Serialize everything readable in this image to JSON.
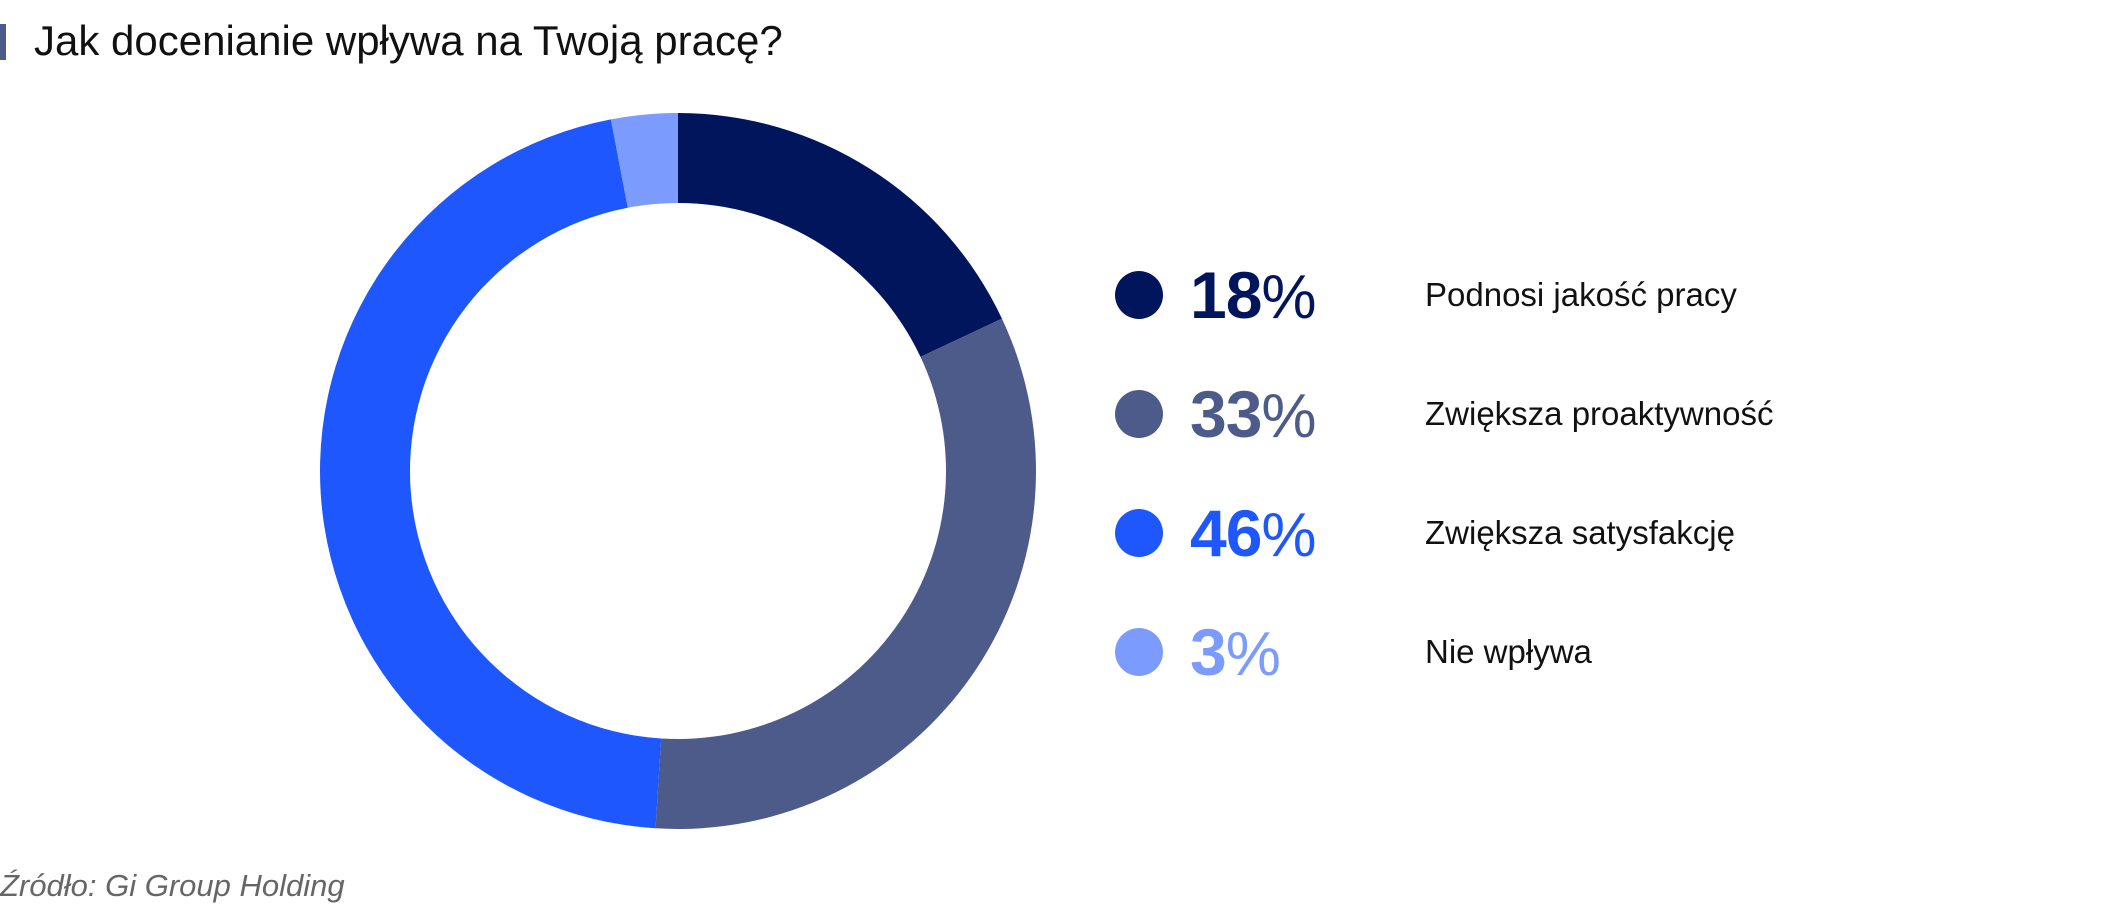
{
  "header": {
    "title": "Jak docenianie wpływa na Twoją pracę?"
  },
  "chart_data": {
    "type": "pie",
    "variant": "donut",
    "title": "Jak docenianie wpływa na Twoją pracę?",
    "legend_position": "right",
    "slices": [
      {
        "label": "Podnosi jakość pracy",
        "value": 18,
        "percent_text": "%",
        "color": "#00155c"
      },
      {
        "label": "Zwiększa proaktywność",
        "value": 33,
        "percent_text": "%",
        "color": "#4d5b8a"
      },
      {
        "label": "Zwiększa satysfakcję",
        "value": 46,
        "percent_text": "%",
        "color": "#1f57ff"
      },
      {
        "label": "Nie wpływa",
        "value": 3,
        "percent_text": "%",
        "color": "#7c9bff"
      }
    ]
  },
  "footer": {
    "source": "Źródło: Gi Group Holding"
  }
}
